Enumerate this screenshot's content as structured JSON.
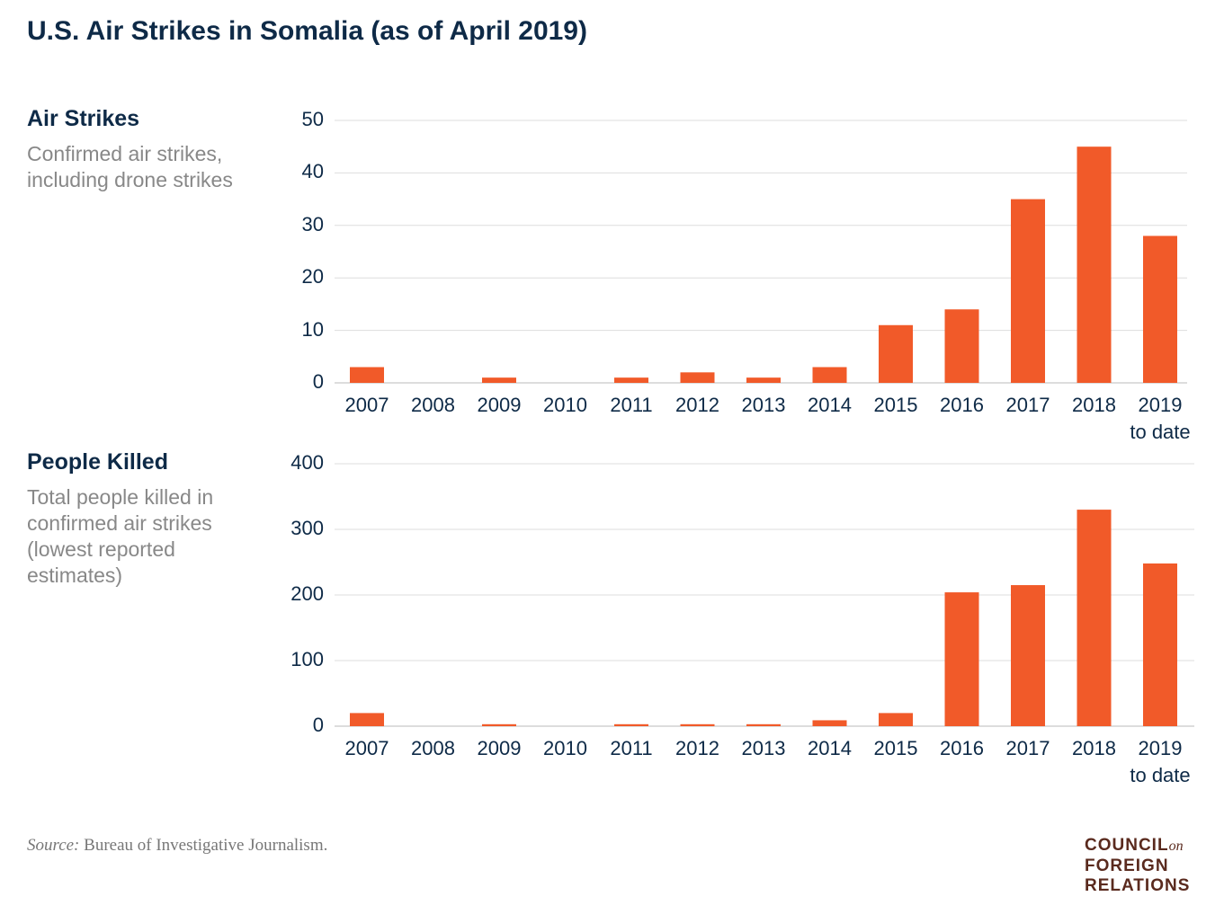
{
  "title": "U.S. Air Strikes in Somalia (as of April 2019)",
  "chart_data": [
    {
      "type": "bar",
      "title": "Air Strikes",
      "subtitle": "Confirmed air strikes, including drone strikes",
      "categories": [
        "2007",
        "2008",
        "2009",
        "2010",
        "2011",
        "2012",
        "2013",
        "2014",
        "2015",
        "2016",
        "2017",
        "2018",
        "2019 to date"
      ],
      "values": [
        3,
        0,
        1,
        0,
        1,
        2,
        1,
        3,
        11,
        14,
        35,
        45,
        28
      ],
      "color": "#f15a29",
      "ylim": [
        0,
        50
      ],
      "yticks": [
        0,
        10,
        20,
        30,
        40,
        50
      ],
      "grid": true
    },
    {
      "type": "bar",
      "title": "People Killed",
      "subtitle": "Total people killed in confirmed air strikes (lowest reported estimates)",
      "categories": [
        "2007",
        "2008",
        "2009",
        "2010",
        "2011",
        "2012",
        "2013",
        "2014",
        "2015",
        "2016",
        "2017",
        "2018",
        "2019 to date"
      ],
      "values": [
        20,
        0,
        3,
        0,
        3,
        3,
        3,
        9,
        20,
        204,
        215,
        330,
        248
      ],
      "color": "#f15a29",
      "ylim": [
        0,
        400
      ],
      "yticks": [
        0,
        100,
        200,
        300,
        400
      ],
      "grid": true
    }
  ],
  "footer": {
    "source_label": "Source:",
    "source_text": "Bureau of Investigative Journalism."
  },
  "logo": {
    "line1": "COUNCIL",
    "line1_suffix": "on",
    "line2": "FOREIGN",
    "line3": "RELATIONS"
  }
}
